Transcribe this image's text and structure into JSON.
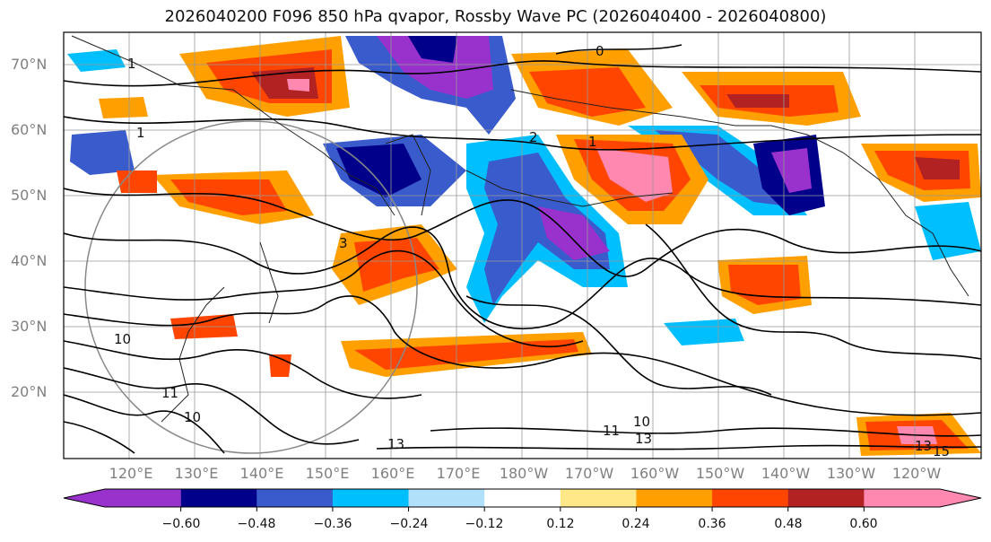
{
  "title": "2026040200 F096 850 hPa qvapor, Rossby Wave PC (2026040400 - 2026040800)",
  "lat_labels": [
    "70°N",
    "60°N",
    "50°N",
    "40°N",
    "30°N",
    "20°N"
  ],
  "lon_labels": [
    "120°E",
    "130°E",
    "140°E",
    "150°E",
    "160°E",
    "170°E",
    "180°W",
    "170°W",
    "160°W",
    "150°W",
    "140°W",
    "130°W",
    "120°W"
  ],
  "contour_labels": [
    "1",
    "1",
    "0",
    "2",
    "1",
    "3",
    "10",
    "11",
    "10",
    "13",
    "11",
    "10",
    "13",
    "13",
    "15"
  ],
  "colorbar": {
    "colors": [
      "#9932cc",
      "#00008b",
      "#3a5bcc",
      "#00bfff",
      "#b0e0fa",
      "#ffffff",
      "#ffe888",
      "#ffa000",
      "#ff4500",
      "#b22222",
      "#ff88b0"
    ],
    "tick_labels": [
      "−0.60",
      "−0.48",
      "−0.36",
      "−0.24",
      "−0.12",
      "0.12",
      "0.24",
      "0.36",
      "0.48",
      "0.60"
    ]
  }
}
